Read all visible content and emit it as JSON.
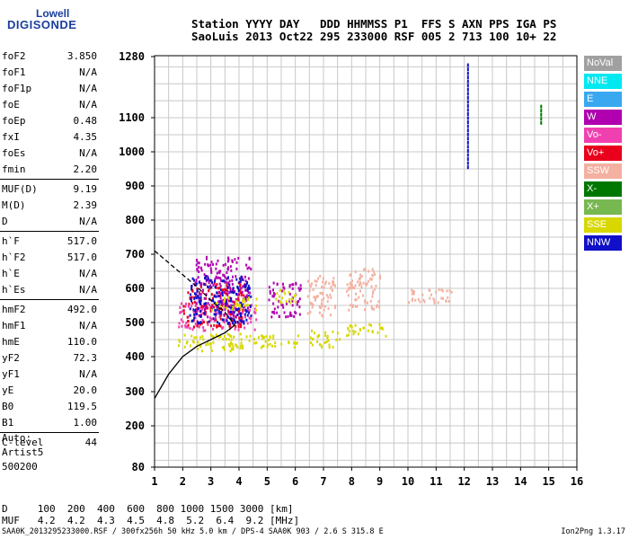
{
  "logo": {
    "line1": "Lowell",
    "line2": "DIGISONDE"
  },
  "header": {
    "line1": "Station YYYY DAY   DDD HHMMSS P1  FFS S AXN PPS IGA PS",
    "line2": "SaoLuis 2013 Oct22 295 233000 RSF 005 2 713 100 10+ 22"
  },
  "params": [
    {
      "label": "foF2",
      "value": "3.850"
    },
    {
      "label": "foF1",
      "value": "N/A"
    },
    {
      "label": "foF1p",
      "value": "N/A"
    },
    {
      "label": "foE",
      "value": "N/A"
    },
    {
      "label": "foEp",
      "value": "0.48"
    },
    {
      "label": "fxI",
      "value": "4.35"
    },
    {
      "label": "foEs",
      "value": "N/A"
    },
    {
      "label": "fmin",
      "value": "2.20"
    },
    {
      "label": "MUF(D)",
      "value": "9.19"
    },
    {
      "label": "M(D)",
      "value": "2.39"
    },
    {
      "label": "D",
      "value": "N/A"
    },
    {
      "label": "h`F",
      "value": "517.0"
    },
    {
      "label": "h`F2",
      "value": "517.0"
    },
    {
      "label": "h`E",
      "value": "N/A"
    },
    {
      "label": "h`Es",
      "value": "N/A"
    },
    {
      "label": "hmF2",
      "value": "492.0"
    },
    {
      "label": "hmF1",
      "value": "N/A"
    },
    {
      "label": "hmE",
      "value": "110.0"
    },
    {
      "label": "yF2",
      "value": "72.3"
    },
    {
      "label": "yF1",
      "value": "N/A"
    },
    {
      "label": "yE",
      "value": "20.0"
    },
    {
      "label": "B0",
      "value": "119.5"
    },
    {
      "label": "B1",
      "value": "1.00"
    },
    {
      "label": "C-level",
      "value": "44"
    }
  ],
  "auto": {
    "line1": "Auto:",
    "line2": "Artist5",
    "line3": "500200"
  },
  "footer": {
    "d_line": "D     100  200  400  600  800 1000 1500 3000 [km]",
    "muf_line": "MUF   4.2  4.2  4.3  4.5  4.8  5.2  6.4  9.2 [MHz]",
    "info": "SAA0K_2013295233000.RSF / 300fx256h 50 kHz 5.0 km / DPS-4 SAA0K 903 / 2.6 S 315.8 E",
    "version": "Ion2Png 1.3.17"
  },
  "legend": [
    {
      "label": "NoVal",
      "color": "#a0a0a0"
    },
    {
      "label": "NNE",
      "color": "#00e8f0"
    },
    {
      "label": "E",
      "color": "#3aa8f0"
    },
    {
      "label": "W",
      "color": "#b000b0"
    },
    {
      "label": "Vo-",
      "color": "#f040b0"
    },
    {
      "label": "Vo+",
      "color": "#e8001c"
    },
    {
      "label": "SSW",
      "color": "#f4b0a0"
    },
    {
      "label": "X-",
      "color": "#007800"
    },
    {
      "label": "X+",
      "color": "#78b850"
    },
    {
      "label": "SSE",
      "color": "#d8d800"
    },
    {
      "label": "NNW",
      "color": "#1010c8"
    }
  ],
  "chart_data": {
    "type": "scatter",
    "title": "",
    "xlabel": "",
    "ylabel": "",
    "xlim": [
      1,
      16
    ],
    "ylim": [
      80,
      1280
    ],
    "x_ticks": [
      1,
      2,
      3,
      4,
      5,
      6,
      7,
      8,
      9,
      10,
      11,
      12,
      13,
      14,
      15,
      16
    ],
    "y_ticks": [
      80,
      200,
      300,
      400,
      500,
      600,
      700,
      800,
      900,
      1000,
      1100,
      1280
    ],
    "grid": true,
    "legend_position": "right",
    "clusters": [
      {
        "x": [
          1.8,
          4.6
        ],
        "y": [
          420,
          470
        ],
        "color": "#d8d800"
      },
      {
        "x": [
          1.8,
          4.6
        ],
        "y": [
          480,
          560
        ],
        "color": "#f040b0"
      },
      {
        "x": [
          2.0,
          4.2
        ],
        "y": [
          490,
          620
        ],
        "color": "#e8001c"
      },
      {
        "x": [
          2.4,
          4.4
        ],
        "y": [
          520,
          700
        ],
        "color": "#b000b0"
      },
      {
        "x": [
          2.2,
          4.4
        ],
        "y": [
          500,
          640
        ],
        "color": "#1010c8"
      },
      {
        "x": [
          3.0,
          4.6
        ],
        "y": [
          540,
          580
        ],
        "color": "#d8d800"
      },
      {
        "x": [
          4.6,
          6.1
        ],
        "y": [
          430,
          470
        ],
        "color": "#d8d800"
      },
      {
        "x": [
          5.0,
          6.2
        ],
        "y": [
          520,
          620
        ],
        "color": "#b000b0"
      },
      {
        "x": [
          5.2,
          6.0
        ],
        "y": [
          560,
          600
        ],
        "color": "#d8d800"
      },
      {
        "x": [
          6.5,
          7.6
        ],
        "y": [
          430,
          480
        ],
        "color": "#d8d800"
      },
      {
        "x": [
          6.4,
          7.4
        ],
        "y": [
          520,
          640
        ],
        "color": "#f4b0a0"
      },
      {
        "x": [
          7.8,
          9.2
        ],
        "y": [
          460,
          500
        ],
        "color": "#d8d800"
      },
      {
        "x": [
          7.8,
          9.0
        ],
        "y": [
          540,
          660
        ],
        "color": "#f4b0a0"
      },
      {
        "x": [
          10.0,
          11.6
        ],
        "y": [
          560,
          600
        ],
        "color": "#f4b0a0"
      }
    ],
    "vertical_lines": [
      {
        "x": 12.1,
        "y": [
          960,
          1270
        ],
        "color": "#1010c8"
      },
      {
        "x": 14.7,
        "y": [
          1090,
          1140
        ],
        "color": "#007800"
      }
    ],
    "profile_solid": {
      "x": [
        1.0,
        1.5,
        2.0,
        2.5,
        3.0,
        3.5,
        3.85
      ],
      "y": [
        280,
        350,
        400,
        430,
        450,
        470,
        492
      ]
    },
    "profile_dashed": {
      "x": [
        1.0,
        1.5,
        2.0,
        2.5,
        3.0,
        3.5,
        3.85
      ],
      "y": [
        710,
        675,
        640,
        605,
        565,
        530,
        492
      ]
    }
  }
}
